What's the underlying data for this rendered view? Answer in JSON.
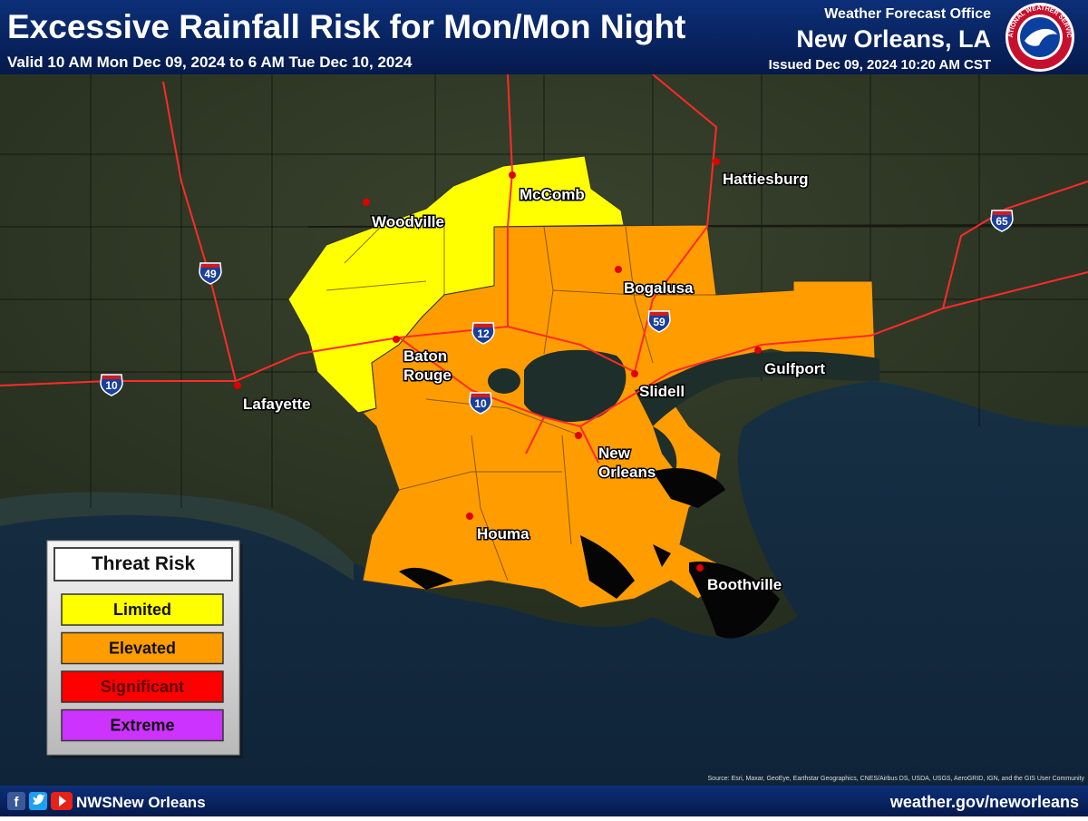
{
  "header": {
    "title": "Excessive Rainfall Risk for Mon/Mon Night",
    "valid": "Valid 10 AM Mon Dec 09, 2024 to 6 AM Tue Dec 10, 2024",
    "office_label": "Weather Forecast Office",
    "office": "New Orleans, LA",
    "issued": "Issued Dec 09, 2024 10:20 AM CST",
    "logo_text": "NATIONAL WEATHER SERVICE"
  },
  "map": {
    "cities": [
      {
        "label": [
          "McComb"
        ]
      },
      {
        "label": [
          "Hattiesburg"
        ]
      },
      {
        "label": [
          "Woodville"
        ]
      },
      {
        "label": [
          "Bogalusa"
        ]
      },
      {
        "label": [
          "Baton",
          "Rouge"
        ]
      },
      {
        "label": [
          "Lafayette"
        ]
      },
      {
        "label": [
          "Slidell"
        ]
      },
      {
        "label": [
          "Gulfport"
        ]
      },
      {
        "label": [
          "New",
          "Orleans"
        ]
      },
      {
        "label": [
          "Houma"
        ]
      },
      {
        "label": [
          "Boothville"
        ]
      }
    ],
    "interstates": [
      "49",
      "12",
      "59",
      "10",
      "10",
      "65"
    ],
    "source": "Source: Esri, Maxar, GeoEye, Earthstar Geographics, CNES/Airbus DS, USDA, USGS, AeroGRID, IGN, and the GIS User Community"
  },
  "legend": {
    "title": "Threat Risk",
    "items": [
      "Limited",
      "Elevated",
      "Significant",
      "Extreme"
    ]
  },
  "footer": {
    "social": "NWSNew Orleans",
    "url": "weather.gov/neworleans"
  }
}
